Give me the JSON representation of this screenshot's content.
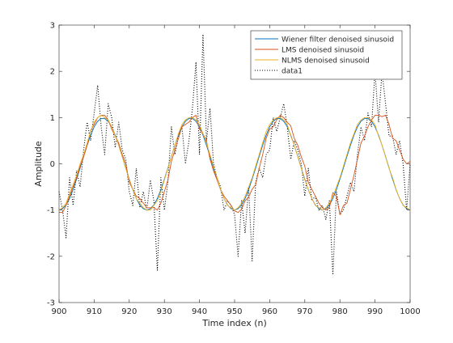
{
  "chart_data": {
    "type": "line",
    "xlabel": "Time index (n)",
    "ylabel": "Amplitude",
    "xlim": [
      900,
      1000
    ],
    "ylim": [
      -3,
      3
    ],
    "x_ticks": [
      900,
      910,
      920,
      930,
      940,
      950,
      960,
      970,
      980,
      990,
      1000
    ],
    "y_ticks": [
      -3,
      -2,
      -1,
      0,
      1,
      2,
      3
    ],
    "grid": false,
    "legend_position": "top-right",
    "x": [
      900,
      901,
      902,
      903,
      904,
      905,
      906,
      907,
      908,
      909,
      910,
      911,
      912,
      913,
      914,
      915,
      916,
      917,
      918,
      919,
      920,
      921,
      922,
      923,
      924,
      925,
      926,
      927,
      928,
      929,
      930,
      931,
      932,
      933,
      934,
      935,
      936,
      937,
      938,
      939,
      940,
      941,
      942,
      943,
      944,
      945,
      946,
      947,
      948,
      949,
      950,
      951,
      952,
      953,
      954,
      955,
      956,
      957,
      958,
      959,
      960,
      961,
      962,
      963,
      964,
      965,
      966,
      967,
      968,
      969,
      970,
      971,
      972,
      973,
      974,
      975,
      976,
      977,
      978,
      979,
      980,
      981,
      982,
      983,
      984,
      985,
      986,
      987,
      988,
      989,
      990,
      991,
      992,
      993,
      994,
      995,
      996,
      997,
      998,
      999,
      1000
    ],
    "series": [
      {
        "name": "Wiener filter denoised sinusoid",
        "color": "#0072BD",
        "style": "solid",
        "values": [
          -1.0,
          -0.97,
          -0.89,
          -0.75,
          -0.56,
          -0.33,
          -0.09,
          0.16,
          0.4,
          0.62,
          0.8,
          0.92,
          0.98,
          0.98,
          0.92,
          0.8,
          0.62,
          0.4,
          0.16,
          -0.09,
          -0.33,
          -0.56,
          -0.75,
          -0.89,
          -0.97,
          -1.0,
          -0.97,
          -0.89,
          -0.75,
          -0.56,
          -0.33,
          -0.09,
          0.16,
          0.4,
          0.62,
          0.8,
          0.92,
          0.98,
          0.98,
          0.92,
          0.8,
          0.62,
          0.4,
          0.16,
          -0.09,
          -0.33,
          -0.56,
          -0.75,
          -0.89,
          -0.97,
          -1.0,
          -0.97,
          -0.89,
          -0.75,
          -0.56,
          -0.33,
          -0.09,
          0.16,
          0.4,
          0.62,
          0.8,
          0.92,
          0.98,
          0.98,
          0.92,
          0.8,
          0.62,
          0.4,
          0.16,
          -0.09,
          -0.33,
          -0.56,
          -0.75,
          -0.89,
          -0.97,
          -1.0,
          -0.97,
          -0.89,
          -0.75,
          -0.56,
          -0.33,
          -0.09,
          0.16,
          0.4,
          0.62,
          0.8,
          0.92,
          0.98,
          0.98,
          0.92,
          0.8,
          0.62,
          0.4,
          0.16,
          -0.09,
          -0.33,
          -0.56,
          -0.75,
          -0.89,
          -0.97,
          -1.0
        ]
      },
      {
        "name": "LMS denoised sinusoid",
        "color": "#D95319",
        "style": "solid",
        "values": [
          -1.05,
          -1.05,
          -0.9,
          -0.7,
          -0.5,
          -0.3,
          -0.05,
          0.15,
          0.4,
          0.72,
          0.85,
          1.0,
          1.05,
          1.05,
          0.95,
          0.75,
          0.6,
          0.45,
          0.2,
          0.0,
          -0.4,
          -0.55,
          -0.7,
          -0.75,
          -0.85,
          -0.95,
          -0.95,
          -0.95,
          -1.0,
          -0.85,
          -0.6,
          -0.35,
          0.05,
          0.3,
          0.55,
          0.8,
          0.85,
          0.9,
          1.0,
          1.05,
          0.75,
          0.65,
          0.5,
          0.1,
          -0.15,
          -0.35,
          -0.55,
          -0.7,
          -0.8,
          -0.9,
          -1.02,
          -1.05,
          -0.98,
          -0.8,
          -0.72,
          -0.55,
          -0.45,
          -0.1,
          0.2,
          0.55,
          0.75,
          0.8,
          0.95,
          1.05,
          1.0,
          0.9,
          0.82,
          0.55,
          0.4,
          0.15,
          -0.05,
          -0.4,
          -0.55,
          -0.7,
          -0.85,
          -0.95,
          -1.0,
          -0.95,
          -0.62,
          -0.7,
          -1.1,
          -0.9,
          -0.85,
          -0.55,
          -0.25,
          0.1,
          0.45,
          0.6,
          0.8,
          0.95,
          1.05,
          1.05,
          1.02,
          1.05,
          0.85,
          0.55,
          0.5,
          0.3,
          0.1,
          0.0,
          0.05
        ]
      },
      {
        "name": "NLMS denoised sinusoid",
        "color": "#EDB120",
        "style": "solid",
        "values": [
          -1.0,
          -0.95,
          -0.85,
          -0.65,
          -0.45,
          -0.25,
          0.0,
          0.2,
          0.45,
          0.7,
          0.9,
          1.0,
          1.05,
          1.0,
          0.95,
          0.8,
          0.6,
          0.4,
          0.15,
          -0.1,
          -0.35,
          -0.55,
          -0.75,
          -0.85,
          -0.95,
          -1.0,
          -1.0,
          -0.9,
          -0.8,
          -0.6,
          -0.35,
          -0.1,
          0.15,
          0.4,
          0.65,
          0.85,
          0.95,
          1.0,
          1.0,
          0.95,
          0.85,
          0.65,
          0.45,
          0.2,
          -0.05,
          -0.3,
          -0.55,
          -0.75,
          -0.9,
          -0.95,
          -1.0,
          -0.95,
          -0.85,
          -0.7,
          -0.5,
          -0.3,
          -0.05,
          0.2,
          0.45,
          0.7,
          0.85,
          0.95,
          1.0,
          1.0,
          0.95,
          0.85,
          0.6,
          0.4,
          0.15,
          -0.1,
          -0.35,
          -0.55,
          -0.75,
          -0.9,
          -0.95,
          -1.0,
          -0.95,
          -0.85,
          -0.7,
          -0.5,
          -0.3,
          -0.05,
          0.2,
          0.45,
          0.65,
          0.85,
          0.95,
          1.0,
          1.0,
          0.95,
          0.85,
          0.6,
          0.4,
          0.15,
          -0.1,
          -0.3,
          -0.55,
          -0.75,
          -0.9,
          -0.95,
          -1.0
        ]
      },
      {
        "name": "data1",
        "color": "#000000",
        "style": "dotted",
        "values": [
          -0.6,
          -1.0,
          -1.6,
          -0.3,
          -0.9,
          -0.15,
          -0.5,
          0.3,
          0.9,
          0.5,
          1.1,
          1.7,
          0.8,
          0.2,
          1.3,
          1.0,
          0.35,
          0.9,
          0.3,
          0.1,
          -0.6,
          -0.9,
          -0.1,
          -0.95,
          -0.6,
          -1.0,
          -0.35,
          -0.8,
          -2.3,
          -0.3,
          -1.0,
          -0.4,
          0.8,
          0.2,
          0.6,
          0.8,
          0.0,
          0.5,
          1.2,
          2.2,
          0.2,
          2.8,
          0.5,
          1.2,
          0.0,
          -0.3,
          -0.5,
          -1.0,
          -0.8,
          -0.9,
          -1.1,
          -2.0,
          -0.8,
          -1.5,
          -0.5,
          -2.1,
          -0.4,
          -0.1,
          -0.3,
          0.2,
          0.3,
          1.0,
          0.7,
          1.0,
          1.3,
          0.8,
          0.1,
          0.5,
          0.3,
          0.0,
          -0.7,
          -0.1,
          -0.8,
          -0.7,
          -1.0,
          -0.9,
          -1.2,
          -0.8,
          -2.4,
          -0.6,
          -1.1,
          -1.0,
          -0.7,
          -0.4,
          -0.6,
          0.2,
          0.8,
          0.5,
          1.1,
          0.8,
          2.0,
          0.9,
          2.0,
          1.3,
          0.6,
          0.6,
          0.2,
          0.5,
          0.0,
          -1.0,
          0.0
        ]
      }
    ]
  }
}
